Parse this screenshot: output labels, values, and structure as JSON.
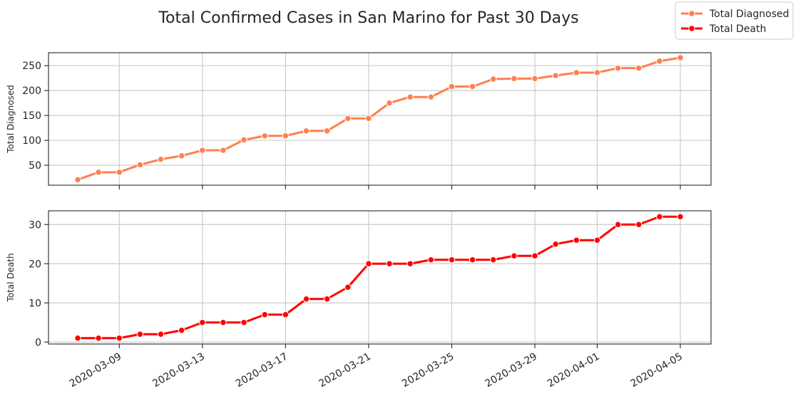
{
  "chart_data": {
    "title": "Total Confirmed Cases in San Marino for Past 30 Days",
    "type": "line",
    "x": [
      "2020-03-07",
      "2020-03-08",
      "2020-03-09",
      "2020-03-10",
      "2020-03-11",
      "2020-03-12",
      "2020-03-13",
      "2020-03-14",
      "2020-03-15",
      "2020-03-16",
      "2020-03-17",
      "2020-03-18",
      "2020-03-19",
      "2020-03-20",
      "2020-03-21",
      "2020-03-22",
      "2020-03-23",
      "2020-03-24",
      "2020-03-25",
      "2020-03-26",
      "2020-03-27",
      "2020-03-28",
      "2020-03-29",
      "2020-03-30",
      "2020-03-31",
      "2020-04-01",
      "2020-04-02",
      "2020-04-03",
      "2020-04-04",
      "2020-04-05"
    ],
    "x_ticks": [
      "2020-03-09",
      "2020-03-13",
      "2020-03-17",
      "2020-03-21",
      "2020-03-25",
      "2020-03-29",
      "2020-04-01",
      "2020-04-05"
    ],
    "grid": true,
    "legend": {
      "placement": "top-right",
      "entries": [
        "Total Diagnosed",
        "Total Death"
      ]
    },
    "panels": [
      {
        "ylabel": "Total Diagnosed",
        "ylim": [
          10,
          276
        ],
        "yticks": [
          50,
          100,
          150,
          200,
          250
        ],
        "series": [
          {
            "name": "Total Diagnosed",
            "color": "#ff7f50",
            "values": [
              21,
              36,
              36,
              51,
              62,
              69,
              80,
              80,
              101,
              109,
              109,
              119,
              119,
              144,
              144,
              175,
              187,
              187,
              208,
              208,
              223,
              224,
              224,
              230,
              236,
              236,
              245,
              245,
              259,
              266
            ]
          }
        ]
      },
      {
        "ylabel": "Total Death",
        "ylim": [
          -0.5,
          33.5
        ],
        "yticks": [
          0,
          10,
          20,
          30
        ],
        "series": [
          {
            "name": "Total Death",
            "color": "#ff0000",
            "values": [
              1,
              1,
              1,
              2,
              2,
              3,
              5,
              5,
              5,
              7,
              7,
              11,
              11,
              14,
              20,
              20,
              20,
              21,
              21,
              21,
              21,
              22,
              22,
              25,
              26,
              26,
              30,
              30,
              32,
              32
            ]
          }
        ]
      }
    ]
  }
}
